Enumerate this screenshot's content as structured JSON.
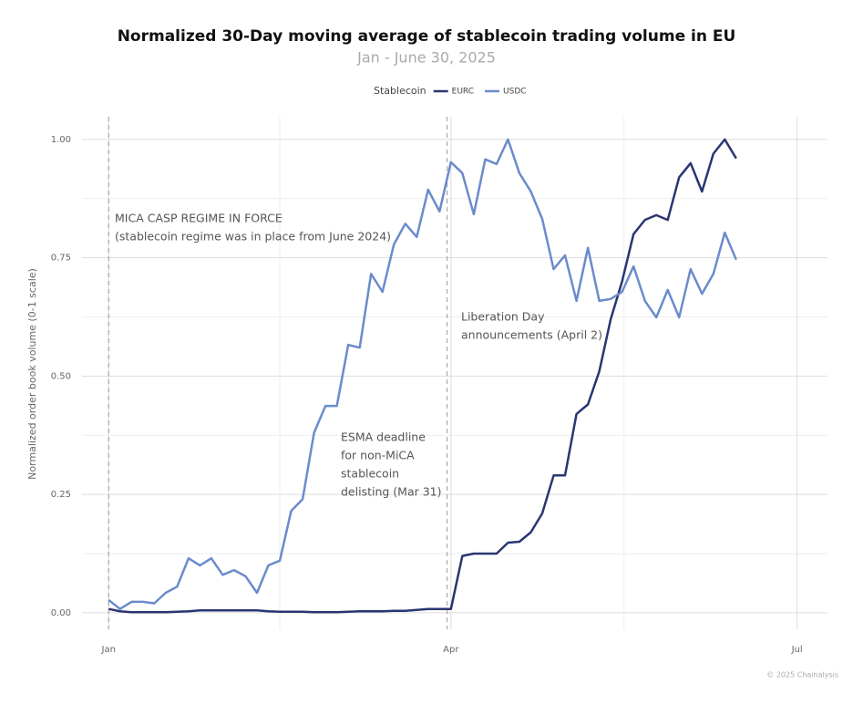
{
  "chart_data": {
    "type": "line",
    "title": "Normalized 30-Day moving average of stablecoin trading volume in EU",
    "subtitle": "Jan - June 30, 2025",
    "y_label": "Normalized order book volume (0-1 scale)",
    "legend_title": "Stablecoin",
    "legend_position": "top",
    "source": "© 2025 Chainalysis",
    "grid": true,
    "xlim": [
      -7,
      189
    ],
    "xticks": [
      {
        "value": 0,
        "label": "Jan"
      },
      {
        "value": 90,
        "label": "Apr"
      },
      {
        "value": 181,
        "label": "Jul"
      }
    ],
    "ylim": [
      -0.035,
      1.048
    ],
    "yticks": [
      {
        "value": 0,
        "label": "0.00"
      },
      {
        "value": 0.25,
        "label": "0.25"
      },
      {
        "value": 0.5,
        "label": "0.50"
      },
      {
        "value": 0.75,
        "label": "0.75"
      },
      {
        "value": 1,
        "label": "1.00"
      }
    ],
    "event_lines": [
      0,
      89
    ],
    "annotations": [
      [
        "MICA CASP REGIME IN FORCE",
        "(stablecoin regime was in place from June 2024)"
      ],
      [
        "ESMA deadline",
        "for non-MiCA",
        "stablecoin",
        "delisting (Mar 31)"
      ],
      [
        "Liberation Day",
        "announcements (April 2)"
      ]
    ],
    "x": [
      0,
      3,
      6,
      9,
      12,
      15,
      18,
      21,
      24,
      27,
      30,
      33,
      36,
      39,
      42,
      45,
      48,
      51,
      54,
      57,
      60,
      63,
      66,
      69,
      72,
      75,
      78,
      81,
      84,
      87,
      90,
      93,
      96,
      99,
      102,
      105,
      108,
      111,
      114,
      117,
      120,
      123,
      126,
      129,
      132,
      135,
      138,
      141,
      144,
      147,
      150,
      153,
      156,
      159,
      162,
      165
    ],
    "series": [
      {
        "name": "EURC",
        "color": "#2a3670",
        "values": [
          0.008,
          0.003,
          0.001,
          0.001,
          0.001,
          0.001,
          0.002,
          0.003,
          0.005,
          0.005,
          0.005,
          0.005,
          0.005,
          0.005,
          0.003,
          0.002,
          0.002,
          0.002,
          0.001,
          0.001,
          0.001,
          0.002,
          0.003,
          0.003,
          0.003,
          0.004,
          0.004,
          0.006,
          0.008,
          0.008,
          0.008,
          0.12,
          0.125,
          0.125,
          0.125,
          0.148,
          0.15,
          0.17,
          0.21,
          0.29,
          0.29,
          0.42,
          0.44,
          0.51,
          0.62,
          0.7,
          0.8,
          0.83,
          0.84,
          0.83,
          0.92,
          0.95,
          0.89,
          0.97,
          1.0,
          0.96
        ]
      },
      {
        "name": "USDC",
        "color": "#6b8bcb",
        "values": [
          0.027,
          0.008,
          0.023,
          0.023,
          0.02,
          0.042,
          0.055,
          0.115,
          0.1,
          0.115,
          0.08,
          0.09,
          0.077,
          0.042,
          0.1,
          0.11,
          0.215,
          0.24,
          0.38,
          0.437,
          0.437,
          0.566,
          0.56,
          0.716,
          0.678,
          0.778,
          0.822,
          0.794,
          0.894,
          0.848,
          0.952,
          0.929,
          0.842,
          0.958,
          0.948,
          1.0,
          0.929,
          0.89,
          0.832,
          0.726,
          0.755,
          0.659,
          0.771,
          0.659,
          0.663,
          0.678,
          0.732,
          0.659,
          0.624,
          0.682,
          0.624,
          0.726,
          0.674,
          0.716,
          0.803,
          0.746
        ]
      }
    ]
  }
}
